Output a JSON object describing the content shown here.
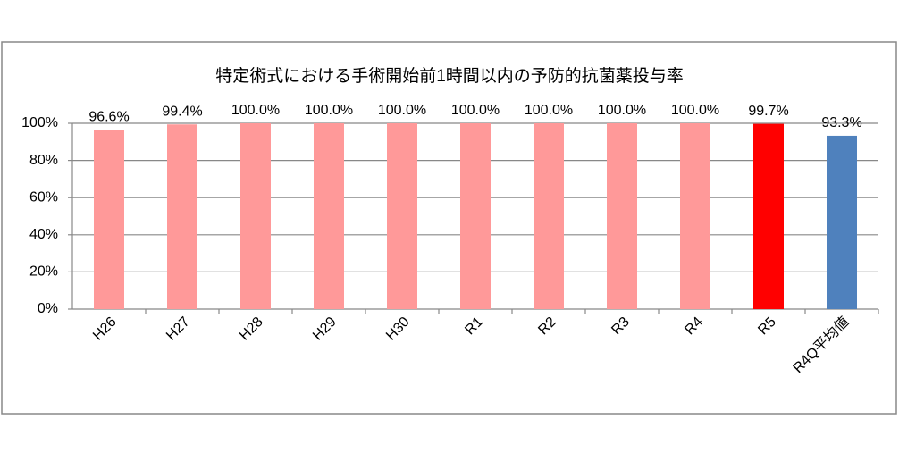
{
  "chart_data": {
    "type": "bar",
    "title": "特定術式における手術開始前1時間以内の予防的抗菌薬投与率",
    "categories": [
      "H26",
      "H27",
      "H28",
      "H29",
      "H30",
      "R1",
      "R2",
      "R3",
      "R4",
      "R5",
      "R4Q平均値"
    ],
    "values": [
      96.6,
      99.4,
      100,
      100,
      100,
      100,
      100,
      100,
      100,
      99.7,
      93.3
    ],
    "value_labels": [
      "96.6%",
      "99.4%",
      "100.0%",
      "100.0%",
      "100.0%",
      "100.0%",
      "100.0%",
      "100.0%",
      "100.0%",
      "99.7%",
      "93.3%"
    ],
    "colors": [
      "#ff9999",
      "#ff9999",
      "#ff9999",
      "#ff9999",
      "#ff9999",
      "#ff9999",
      "#ff9999",
      "#ff9999",
      "#ff9999",
      "#ff0000",
      "#4f81bd"
    ],
    "ylim": [
      0,
      100
    ],
    "yticks": [
      {
        "value": 0,
        "label": "0%"
      },
      {
        "value": 20,
        "label": "20%"
      },
      {
        "value": 40,
        "label": "40%"
      },
      {
        "value": 60,
        "label": "60%"
      },
      {
        "value": 80,
        "label": "80%"
      },
      {
        "value": 100,
        "label": "100%"
      }
    ],
    "grid": true
  }
}
